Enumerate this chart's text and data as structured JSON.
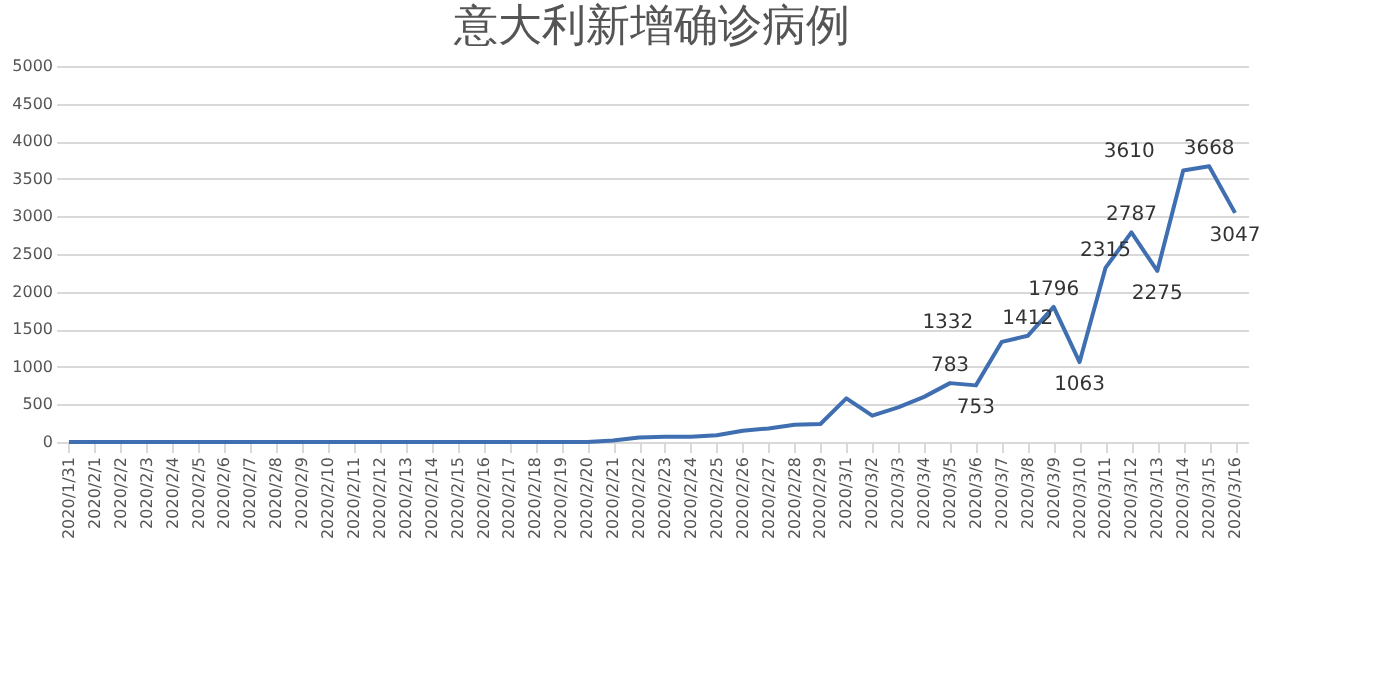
{
  "chart_data": {
    "type": "line",
    "title": "意大利新增确诊病例",
    "categories": [
      "2020/1/31",
      "2020/2/1",
      "2020/2/2",
      "2020/2/3",
      "2020/2/4",
      "2020/2/5",
      "2020/2/6",
      "2020/2/7",
      "2020/2/8",
      "2020/2/9",
      "2020/2/10",
      "2020/2/11",
      "2020/2/12",
      "2020/2/13",
      "2020/2/14",
      "2020/2/15",
      "2020/2/16",
      "2020/2/17",
      "2020/2/18",
      "2020/2/19",
      "2020/2/20",
      "2020/2/21",
      "2020/2/22",
      "2020/2/23",
      "2020/2/24",
      "2020/2/25",
      "2020/2/26",
      "2020/2/27",
      "2020/2/28",
      "2020/2/29",
      "2020/3/1",
      "2020/3/2",
      "2020/3/3",
      "2020/3/4",
      "2020/3/5",
      "2020/3/6",
      "2020/3/7",
      "2020/3/8",
      "2020/3/9",
      "2020/3/10",
      "2020/3/11",
      "2020/3/12",
      "2020/3/13",
      "2020/3/14",
      "2020/3/15",
      "2020/3/16"
    ],
    "series": [
      {
        "color": "#3f6fb0",
        "values": [
          0,
          0,
          0,
          0,
          0,
          0,
          0,
          0,
          0,
          0,
          0,
          0,
          0,
          0,
          0,
          0,
          0,
          0,
          0,
          0,
          0,
          20,
          60,
          70,
          70,
          90,
          150,
          180,
          230,
          240,
          580,
          350,
          460,
          600,
          783,
          753,
          1332,
          1412,
          1796,
          1063,
          2315,
          2787,
          2275,
          3610,
          3668,
          3047
        ],
        "value_labels": [
          null,
          null,
          null,
          null,
          null,
          null,
          null,
          null,
          null,
          null,
          null,
          null,
          null,
          null,
          null,
          null,
          null,
          null,
          null,
          null,
          null,
          null,
          null,
          null,
          null,
          null,
          null,
          null,
          null,
          null,
          null,
          null,
          null,
          null,
          "783",
          "753",
          "1332",
          "1412",
          "1796",
          "1063",
          "2315",
          "2787",
          "2275",
          "3610",
          "3668",
          "3047"
        ]
      }
    ],
    "ylim": [
      0,
      5000
    ],
    "yticks": [
      0,
      500,
      1000,
      1500,
      2000,
      2500,
      3000,
      3500,
      4000,
      4500,
      5000
    ],
    "grid": "y",
    "legend": false,
    "marker": "none",
    "line_style": "solid"
  }
}
